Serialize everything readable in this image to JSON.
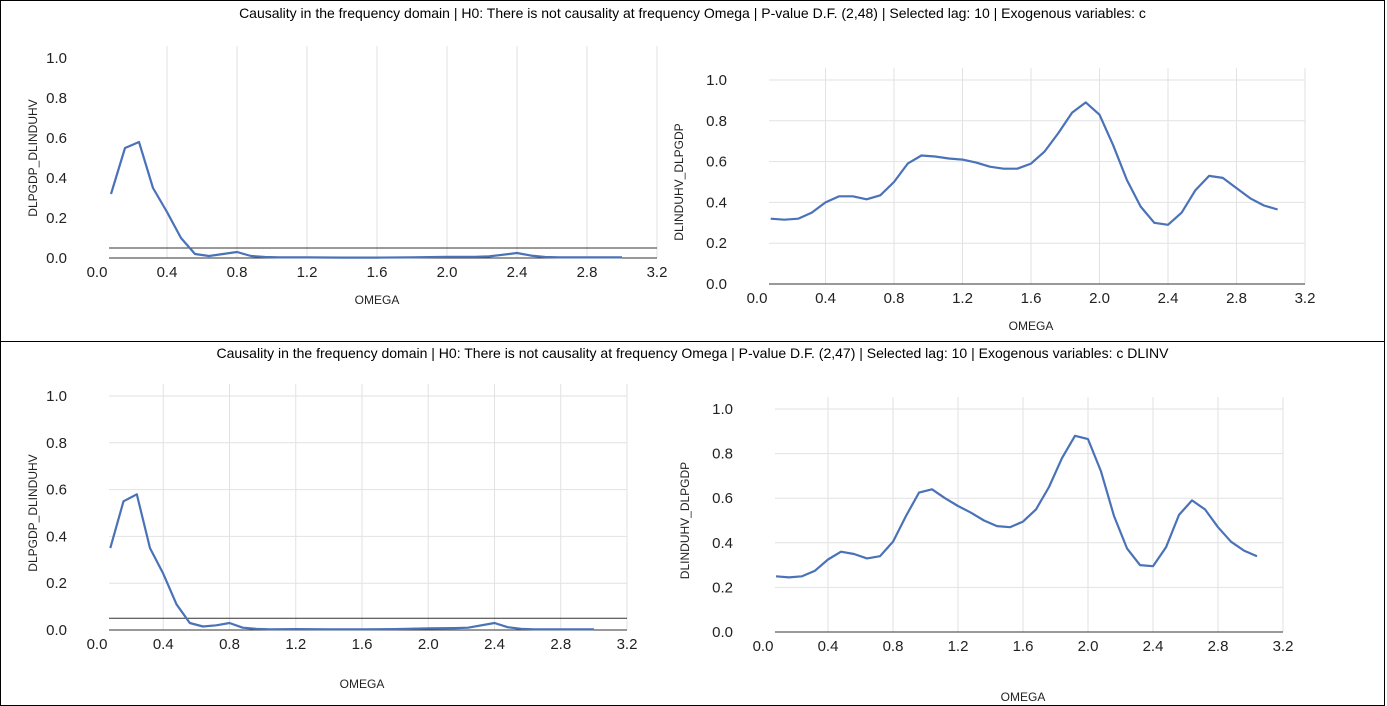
{
  "panels": [
    {
      "title": "Causality in the frequency domain | H0: There is not causality at frequency Omega | P-value D.F. (2,48) | Selected lag: 10 | Exogenous variables: c"
    },
    {
      "title": "Causality in the frequency domain | H0: There is not causality at frequency Omega | P-value D.F. (2,47) | Selected lag: 10 | Exogenous variables: c DLINV"
    }
  ],
  "colors": {
    "series": "#4a72b8",
    "grid": "#e2e2e2",
    "baseline": "#333333"
  },
  "chart_data": [
    {
      "type": "line",
      "title": "",
      "xlabel": "OMEGA",
      "ylabel": "DLPGDP_DLINDUHV",
      "xlim": [
        0.0,
        3.2
      ],
      "ylim": [
        0.0,
        1.0
      ],
      "x_ticks": [
        "0.0",
        "0.4",
        "0.8",
        "1.2",
        "1.6",
        "2.0",
        "2.4",
        "2.8",
        "3.2"
      ],
      "y_ticks": [
        "0.0",
        "0.2",
        "0.4",
        "0.6",
        "0.8",
        "1.0"
      ],
      "grid": "vertical",
      "reference_line": 0.05,
      "series": [
        {
          "x": [
            0.08,
            0.16,
            0.24,
            0.32,
            0.4,
            0.48,
            0.56,
            0.64,
            0.72,
            0.8,
            0.88,
            0.96,
            1.04,
            1.2,
            1.4,
            1.6,
            1.8,
            2.0,
            2.16,
            2.24,
            2.4,
            2.48,
            2.56,
            2.64,
            2.8,
            3.0
          ],
          "values": [
            0.32,
            0.55,
            0.58,
            0.35,
            0.23,
            0.1,
            0.02,
            0.01,
            0.02,
            0.03,
            0.01,
            0.005,
            0.003,
            0.003,
            0.002,
            0.002,
            0.003,
            0.006,
            0.006,
            0.008,
            0.025,
            0.012,
            0.005,
            0.003,
            0.003,
            0.003
          ]
        }
      ]
    },
    {
      "type": "line",
      "title": "",
      "xlabel": "OMEGA",
      "ylabel": "DLINDUHV_DLPGDP",
      "xlim": [
        0.0,
        3.2
      ],
      "ylim": [
        0.0,
        1.0
      ],
      "x_ticks": [
        "0.0",
        "0.4",
        "0.8",
        "1.2",
        "1.6",
        "2.0",
        "2.4",
        "2.8",
        "3.2"
      ],
      "y_ticks": [
        "0.0",
        "0.2",
        "0.4",
        "0.6",
        "0.8",
        "1.0"
      ],
      "grid": "both",
      "series": [
        {
          "x": [
            0.08,
            0.16,
            0.24,
            0.32,
            0.4,
            0.48,
            0.56,
            0.64,
            0.72,
            0.8,
            0.88,
            0.96,
            1.04,
            1.12,
            1.2,
            1.28,
            1.36,
            1.44,
            1.52,
            1.6,
            1.68,
            1.76,
            1.84,
            1.92,
            2.0,
            2.08,
            2.16,
            2.24,
            2.32,
            2.4,
            2.48,
            2.56,
            2.64,
            2.72,
            2.8,
            2.88,
            2.96,
            3.04
          ],
          "values": [
            0.32,
            0.315,
            0.32,
            0.35,
            0.4,
            0.43,
            0.43,
            0.415,
            0.435,
            0.5,
            0.59,
            0.63,
            0.625,
            0.615,
            0.61,
            0.595,
            0.575,
            0.565,
            0.565,
            0.59,
            0.65,
            0.74,
            0.84,
            0.89,
            0.83,
            0.68,
            0.51,
            0.38,
            0.3,
            0.29,
            0.35,
            0.46,
            0.53,
            0.52,
            0.47,
            0.42,
            0.385,
            0.365
          ]
        }
      ]
    },
    {
      "type": "line",
      "title": "",
      "xlabel": "OMEGA",
      "ylabel": "DLPGDP_DLINDUHV",
      "xlim": [
        0.0,
        3.2
      ],
      "ylim": [
        0.0,
        1.0
      ],
      "x_ticks": [
        "0.0",
        "0.4",
        "0.8",
        "1.2",
        "1.6",
        "2.0",
        "2.4",
        "2.8",
        "3.2"
      ],
      "y_ticks": [
        "0.0",
        "0.2",
        "0.4",
        "0.6",
        "0.8",
        "1.0"
      ],
      "grid": "both",
      "reference_line": 0.05,
      "series": [
        {
          "x": [
            0.08,
            0.16,
            0.24,
            0.32,
            0.4,
            0.48,
            0.56,
            0.64,
            0.72,
            0.8,
            0.88,
            0.96,
            1.04,
            1.2,
            1.4,
            1.6,
            1.8,
            2.0,
            2.16,
            2.24,
            2.4,
            2.48,
            2.56,
            2.64,
            2.8,
            3.0
          ],
          "values": [
            0.35,
            0.55,
            0.58,
            0.35,
            0.24,
            0.11,
            0.03,
            0.015,
            0.02,
            0.03,
            0.01,
            0.005,
            0.003,
            0.004,
            0.003,
            0.003,
            0.004,
            0.007,
            0.008,
            0.01,
            0.03,
            0.012,
            0.005,
            0.003,
            0.003,
            0.003
          ]
        }
      ]
    },
    {
      "type": "line",
      "title": "",
      "xlabel": "OMEGA",
      "ylabel": "DLINDUHV_DLPGDP",
      "xlim": [
        0.0,
        3.2
      ],
      "ylim": [
        0.0,
        1.0
      ],
      "x_ticks": [
        "0.0",
        "0.4",
        "0.8",
        "1.2",
        "1.6",
        "2.0",
        "2.4",
        "2.8",
        "3.2"
      ],
      "y_ticks": [
        "0.0",
        "0.2",
        "0.4",
        "0.6",
        "0.8",
        "1.0"
      ],
      "grid": "both",
      "series": [
        {
          "x": [
            0.08,
            0.16,
            0.24,
            0.32,
            0.4,
            0.48,
            0.56,
            0.64,
            0.72,
            0.8,
            0.88,
            0.96,
            1.04,
            1.12,
            1.2,
            1.28,
            1.36,
            1.44,
            1.52,
            1.6,
            1.68,
            1.76,
            1.84,
            1.92,
            2.0,
            2.08,
            2.16,
            2.24,
            2.32,
            2.4,
            2.48,
            2.56,
            2.64,
            2.72,
            2.8,
            2.88,
            2.96,
            3.04
          ],
          "values": [
            0.25,
            0.245,
            0.25,
            0.275,
            0.325,
            0.36,
            0.35,
            0.33,
            0.34,
            0.405,
            0.52,
            0.625,
            0.64,
            0.6,
            0.565,
            0.535,
            0.5,
            0.475,
            0.47,
            0.495,
            0.55,
            0.65,
            0.78,
            0.88,
            0.865,
            0.72,
            0.52,
            0.375,
            0.3,
            0.295,
            0.38,
            0.525,
            0.59,
            0.55,
            0.47,
            0.405,
            0.365,
            0.34
          ]
        }
      ]
    }
  ]
}
